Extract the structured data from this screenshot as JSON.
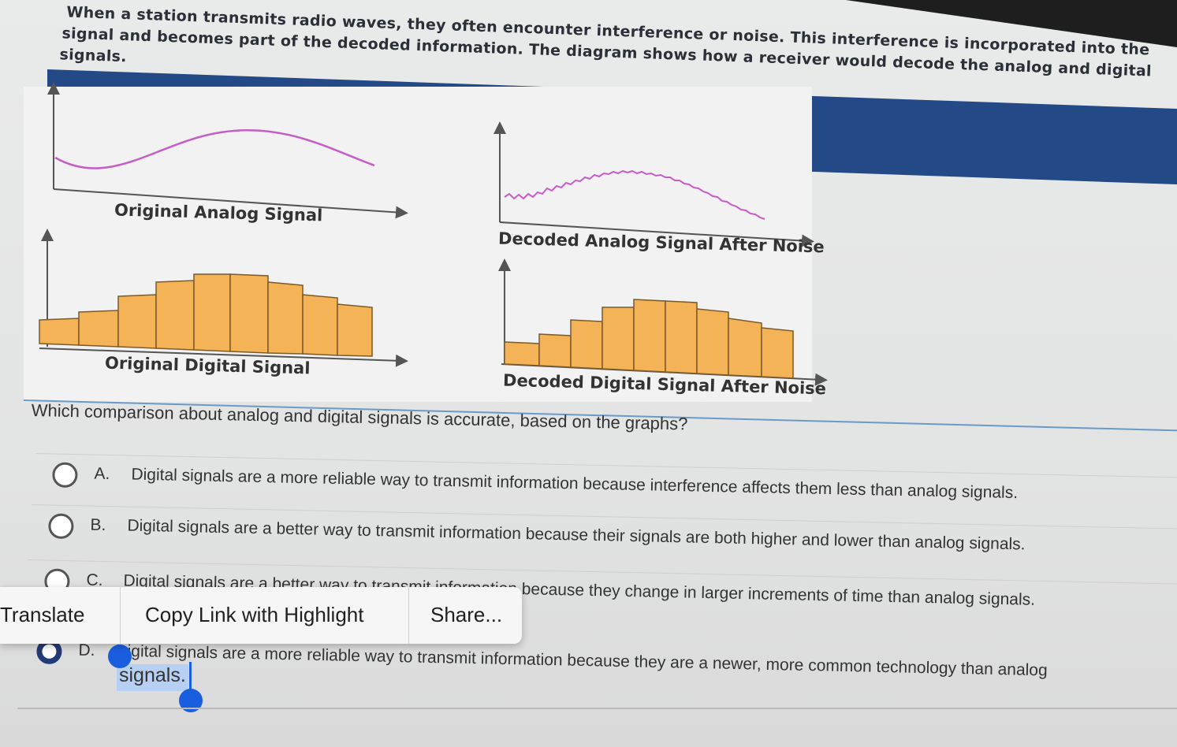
{
  "stem": {
    "line1": "When a station transmits radio waves, they often encounter interference or noise. This interference is incorporated into the",
    "line2": "signal and becomes part of the decoded information. The diagram shows how a receiver would decode the analog and digital",
    "line3": "signals."
  },
  "graphs": {
    "original_analog": "Original Analog Signal",
    "decoded_analog": "Decoded Analog Signal After Noise",
    "original_digital": "Original Digital Signal",
    "decoded_digital": "Decoded Digital Signal After Noise",
    "bar_color": "#f5b358",
    "wave_color": "#c45ec6"
  },
  "question": "Which comparison about analog and digital signals is accurate, based on the graphs?",
  "options": [
    {
      "letter": "A.",
      "text": "Digital signals are a more reliable way to transmit information because interference affects them less than analog signals."
    },
    {
      "letter": "B.",
      "text": "Digital signals are a better way to transmit information because their signals are both higher and lower than analog signals."
    },
    {
      "letter": "C.",
      "text": "Digital signals are a better way to transmit information because they change in larger increments of time than analog signals."
    },
    {
      "letter": "D.",
      "text": "Digital signals are a more reliable way to transmit information because they are a newer, more common technology than analog",
      "text2": "signals."
    }
  ],
  "popup": {
    "translate": "Translate",
    "copy_link": "Copy Link with Highlight",
    "share": "Share..."
  },
  "selection": "signals."
}
